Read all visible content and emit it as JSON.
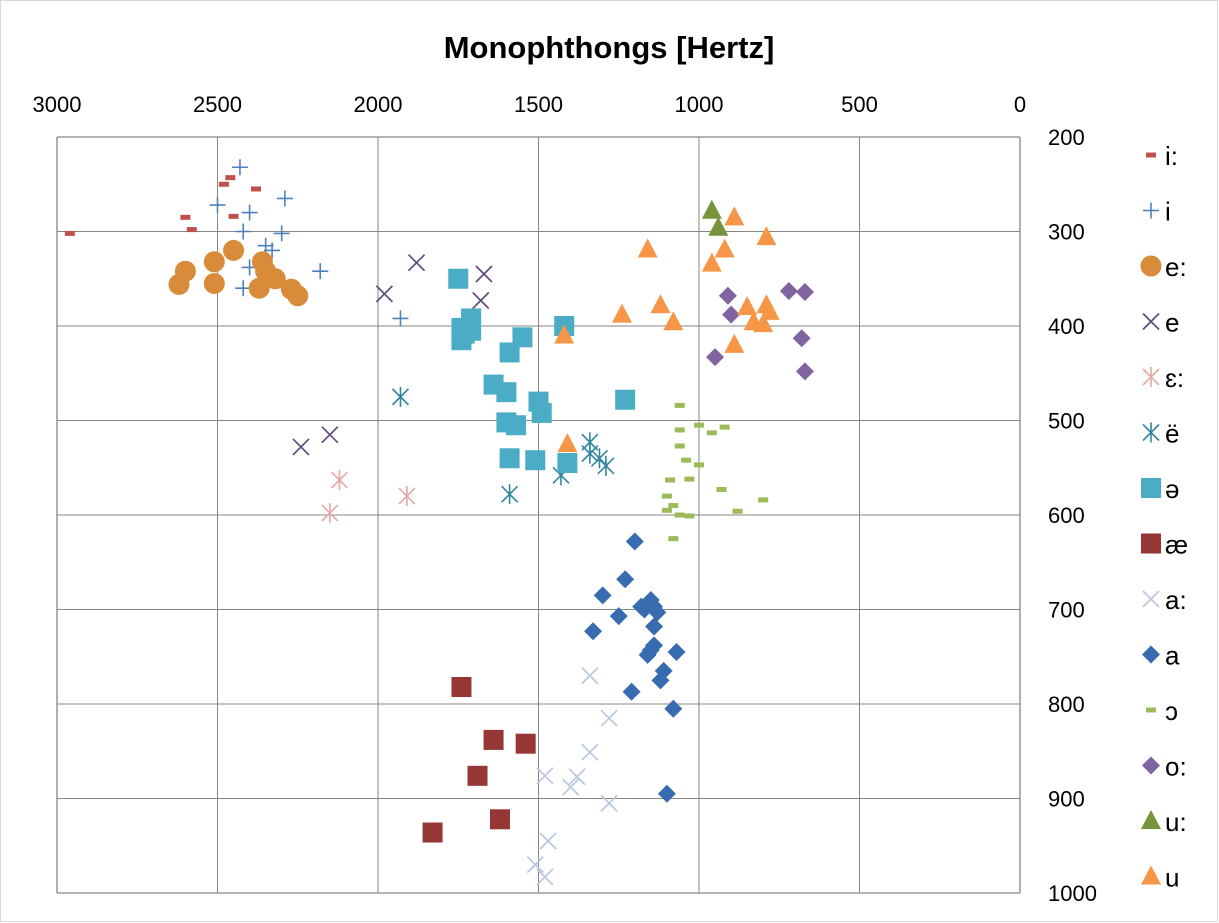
{
  "chart_data": {
    "type": "scatter",
    "title": "Monophthongs [Hertz]",
    "xlabel": "",
    "ylabel": "",
    "x_axis": {
      "position": "top",
      "reversed": true,
      "min": 0,
      "max": 3000,
      "ticks": [
        3000,
        2500,
        2000,
        1500,
        1000,
        500,
        0
      ],
      "tick_labels": [
        "3000",
        "2500",
        "2000",
        "1500",
        "1000",
        "500",
        "0"
      ]
    },
    "y_axis": {
      "position": "right",
      "reversed": true,
      "min": 200,
      "max": 1000,
      "ticks": [
        200,
        300,
        400,
        500,
        600,
        700,
        800,
        900,
        1000
      ],
      "tick_labels": [
        "200",
        "300",
        "400",
        "500",
        "600",
        "700",
        "800",
        "900",
        "1000"
      ]
    },
    "grid": true,
    "legend_position": "right",
    "series": [
      {
        "name": "i:",
        "marker": "dash",
        "color": "#c0504d",
        "points": [
          [
            2960,
            302
          ],
          [
            2600,
            285
          ],
          [
            2580,
            298
          ],
          [
            2480,
            250
          ],
          [
            2460,
            243
          ],
          [
            2450,
            284
          ],
          [
            2380,
            255
          ]
        ]
      },
      {
        "name": "i",
        "marker": "plus",
        "color": "#4f81bd",
        "points": [
          [
            2430,
            232
          ],
          [
            2500,
            272
          ],
          [
            2400,
            280
          ],
          [
            2290,
            265
          ],
          [
            2420,
            300
          ],
          [
            2300,
            302
          ],
          [
            2350,
            315
          ],
          [
            2330,
            320
          ],
          [
            2400,
            338
          ],
          [
            2180,
            342
          ],
          [
            2420,
            360
          ],
          [
            1930,
            392
          ]
        ]
      },
      {
        "name": "e:",
        "marker": "circle",
        "color": "#d88c3a",
        "points": [
          [
            2450,
            320
          ],
          [
            2510,
            332
          ],
          [
            2600,
            342
          ],
          [
            2360,
            332
          ],
          [
            2350,
            342
          ],
          [
            2320,
            350
          ],
          [
            2620,
            356
          ],
          [
            2510,
            355
          ],
          [
            2370,
            360
          ],
          [
            2270,
            361
          ],
          [
            2250,
            368
          ]
        ]
      },
      {
        "name": "e",
        "marker": "x",
        "color": "#604a7b",
        "points": [
          [
            1880,
            333
          ],
          [
            1670,
            345
          ],
          [
            1980,
            366
          ],
          [
            1680,
            373
          ],
          [
            2150,
            515
          ],
          [
            2240,
            528
          ]
        ]
      },
      {
        "name": "ɛ:",
        "marker": "asterisk",
        "color": "#e6a7a3",
        "points": [
          [
            2120,
            563
          ],
          [
            1910,
            580
          ],
          [
            2150,
            598
          ]
        ]
      },
      {
        "name": "ë",
        "marker": "asterisk",
        "color": "#31859c",
        "points": [
          [
            1930,
            475
          ],
          [
            1340,
            523
          ],
          [
            1340,
            535
          ],
          [
            1310,
            540
          ],
          [
            1290,
            548
          ],
          [
            1430,
            558
          ],
          [
            1590,
            578
          ]
        ]
      },
      {
        "name": "ə",
        "marker": "square",
        "color": "#4bacc6",
        "points": [
          [
            1750,
            350
          ],
          [
            1710,
            392
          ],
          [
            1740,
            402
          ],
          [
            1710,
            405
          ],
          [
            1420,
            400
          ],
          [
            1550,
            412
          ],
          [
            1740,
            415
          ],
          [
            1730,
            408
          ],
          [
            1590,
            428
          ],
          [
            1640,
            462
          ],
          [
            1600,
            470
          ],
          [
            1230,
            478
          ],
          [
            1500,
            480
          ],
          [
            1490,
            492
          ],
          [
            1600,
            502
          ],
          [
            1570,
            505
          ],
          [
            1590,
            540
          ],
          [
            1510,
            542
          ],
          [
            1410,
            545
          ]
        ]
      },
      {
        "name": "æ",
        "marker": "square",
        "color": "#953735",
        "points": [
          [
            1740,
            782
          ],
          [
            1640,
            838
          ],
          [
            1540,
            842
          ],
          [
            1690,
            876
          ],
          [
            1620,
            922
          ],
          [
            1830,
            936
          ]
        ]
      },
      {
        "name": "a:",
        "marker": "x",
        "color": "#b9c7de",
        "points": [
          [
            1340,
            770
          ],
          [
            1280,
            815
          ],
          [
            1340,
            851
          ],
          [
            1480,
            876
          ],
          [
            1380,
            877
          ],
          [
            1400,
            888
          ],
          [
            1280,
            905
          ],
          [
            1470,
            945
          ],
          [
            1510,
            970
          ],
          [
            1480,
            983
          ]
        ]
      },
      {
        "name": "a",
        "marker": "diamond",
        "color": "#386cb0",
        "points": [
          [
            1200,
            628
          ],
          [
            1230,
            668
          ],
          [
            1300,
            685
          ],
          [
            1150,
            690
          ],
          [
            1180,
            697
          ],
          [
            1140,
            697
          ],
          [
            1130,
            703
          ],
          [
            1170,
            700
          ],
          [
            1250,
            707
          ],
          [
            1140,
            718
          ],
          [
            1330,
            723
          ],
          [
            1140,
            738
          ],
          [
            1150,
            743
          ],
          [
            1070,
            745
          ],
          [
            1160,
            748
          ],
          [
            1110,
            765
          ],
          [
            1120,
            775
          ],
          [
            1210,
            787
          ],
          [
            1080,
            805
          ],
          [
            1100,
            895
          ]
        ]
      },
      {
        "name": "ɔ",
        "marker": "dash",
        "color": "#9bbb59",
        "points": [
          [
            1060,
            484
          ],
          [
            1000,
            505
          ],
          [
            1060,
            510
          ],
          [
            920,
            507
          ],
          [
            960,
            513
          ],
          [
            1060,
            527
          ],
          [
            1040,
            542
          ],
          [
            1000,
            547
          ],
          [
            1030,
            562
          ],
          [
            1090,
            563
          ],
          [
            1100,
            580
          ],
          [
            930,
            573
          ],
          [
            800,
            584
          ],
          [
            1080,
            590
          ],
          [
            1100,
            595
          ],
          [
            880,
            596
          ],
          [
            1060,
            600
          ],
          [
            1030,
            601
          ],
          [
            1080,
            625
          ]
        ]
      },
      {
        "name": "o:",
        "marker": "diamond",
        "color": "#8064a2",
        "points": [
          [
            910,
            368
          ],
          [
            720,
            363
          ],
          [
            670,
            364
          ],
          [
            900,
            388
          ],
          [
            680,
            413
          ],
          [
            950,
            433
          ],
          [
            670,
            448
          ]
        ]
      },
      {
        "name": "u:",
        "marker": "triangle",
        "color": "#77933c",
        "points": [
          [
            960,
            278
          ],
          [
            940,
            296
          ]
        ]
      },
      {
        "name": "u",
        "marker": "triangle",
        "color": "#f79646",
        "points": [
          [
            890,
            285
          ],
          [
            790,
            306
          ],
          [
            1160,
            319
          ],
          [
            920,
            319
          ],
          [
            960,
            334
          ],
          [
            790,
            378
          ],
          [
            780,
            385
          ],
          [
            850,
            380
          ],
          [
            1120,
            378
          ],
          [
            1240,
            388
          ],
          [
            1080,
            396
          ],
          [
            830,
            396
          ],
          [
            800,
            398
          ],
          [
            890,
            420
          ],
          [
            1420,
            410
          ],
          [
            1410,
            525
          ]
        ]
      }
    ]
  }
}
